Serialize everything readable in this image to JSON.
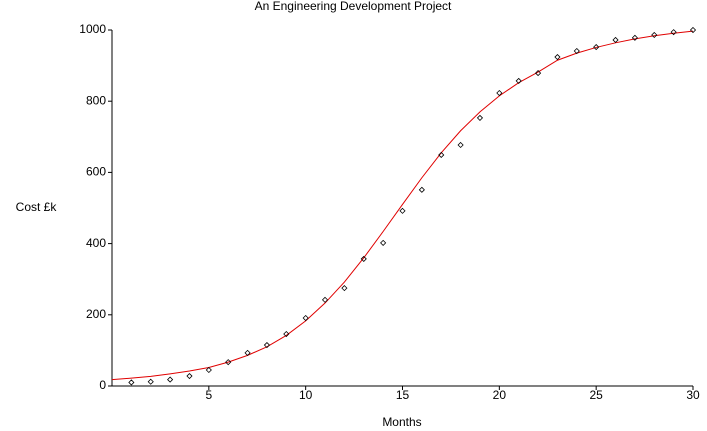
{
  "chart_data": {
    "type": "scatter",
    "title": "An Engineering Development Project",
    "x_label": "Months",
    "y_label": "Cost  £k",
    "xlim": [
      0,
      30
    ],
    "ylim": [
      0,
      1000
    ],
    "xticks": [
      5,
      10,
      15,
      20,
      25,
      30
    ],
    "yticks": [
      0,
      200,
      400,
      600,
      800,
      1000
    ],
    "grid": false,
    "series": [
      {
        "style": "line",
        "color": "#e00000",
        "x": [
          0,
          1,
          2,
          3,
          4,
          5,
          6,
          7,
          8,
          9,
          10,
          11,
          12,
          13,
          14,
          15,
          16,
          17,
          18,
          19,
          20,
          21,
          22,
          23,
          24,
          25,
          26,
          27,
          28,
          29,
          30
        ],
        "values": [
          18,
          22,
          27,
          34,
          42,
          52,
          67,
          86,
          110,
          142,
          183,
          233,
          292,
          360,
          434,
          510,
          585,
          655,
          717,
          770,
          815,
          852,
          882,
          915,
          935,
          951,
          964,
          975,
          984,
          991,
          997
        ]
      },
      {
        "style": "markers",
        "color": "#000000",
        "x": [
          1,
          2,
          3,
          4,
          5,
          6,
          7,
          8,
          9,
          10,
          11,
          12,
          13,
          14,
          15,
          16,
          17,
          18,
          19,
          20,
          21,
          22,
          23,
          24,
          25,
          26,
          27,
          28,
          29,
          30
        ],
        "values": [
          10,
          12,
          18,
          28,
          45,
          67,
          93,
          115,
          146,
          191,
          242,
          275,
          357,
          402,
          492,
          551,
          649,
          677,
          753,
          823,
          857,
          879,
          924,
          941,
          952,
          972,
          978,
          986,
          994,
          1000
        ]
      }
    ]
  }
}
